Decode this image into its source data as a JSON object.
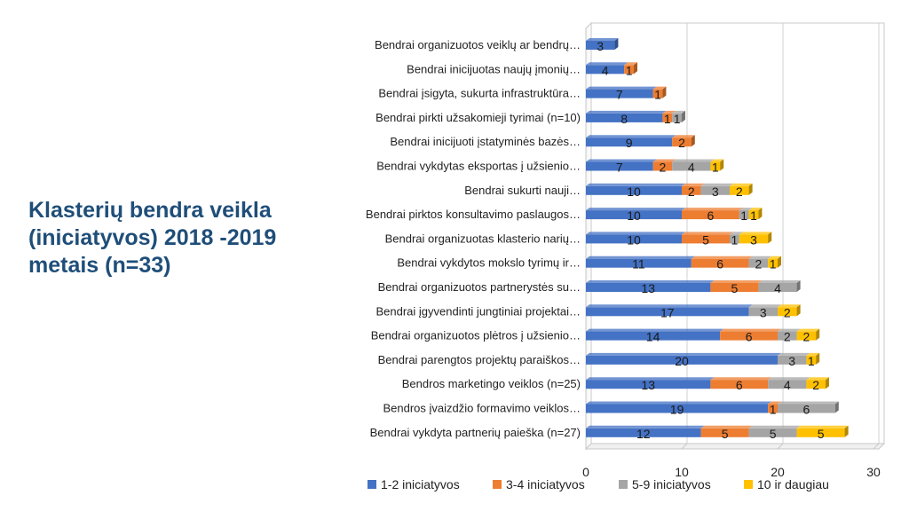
{
  "slide": {
    "title": "Klasterių bendra veikla (iniciatyvos) 2018 -2019 metais (n=33)"
  },
  "chart_data": {
    "type": "bar",
    "orientation": "horizontal",
    "stacked": true,
    "title": "",
    "xlabel": "",
    "ylabel": "",
    "xlim": [
      0,
      30
    ],
    "xticks": [
      0,
      10,
      20,
      30
    ],
    "grid": true,
    "legend_position": "bottom",
    "categories": [
      "Bendrai organizuotos veiklų ar bendrų…",
      "Bendrai inicijuotas naujų įmonių…",
      "Bendrai įsigyta, sukurta infrastruktūra…",
      "Bendrai pirkti užsakomieji tyrimai (n=10)",
      "Bendrai inicijuoti įstatyminės bazės…",
      "Bendrai vykdytas eksportas į užsienio…",
      "Bendrai sukurti nauji…",
      "Bendrai pirktos konsultavimo paslaugos…",
      "Bendrai organizuotas klasterio narių…",
      "Bendrai vykdytos mokslo tyrimų ir…",
      "Bendrai organizuotos partnerystės su…",
      "Bendrai įgyvendinti jungtiniai projektai…",
      "Bendrai organizuotos plėtros į užsienio…",
      "Bendrai parengtos projektų paraiškos…",
      "Bendros marketingo veiklos (n=25)",
      "Bendros įvaizdžio formavimo veiklos…",
      "Bendrai vykdyta partnerių paieška (n=27)"
    ],
    "series": [
      {
        "name": "1-2 iniciatyvos",
        "color": "#4472c4",
        "values": [
          3,
          4,
          7,
          8,
          9,
          7,
          10,
          10,
          10,
          11,
          13,
          17,
          14,
          20,
          13,
          19,
          12
        ]
      },
      {
        "name": "3-4 iniciatyvos",
        "color": "#ed7d31",
        "values": [
          null,
          1,
          1,
          1,
          2,
          2,
          2,
          6,
          5,
          6,
          5,
          null,
          6,
          null,
          6,
          1,
          5
        ]
      },
      {
        "name": "5-9 iniciatyvos",
        "color": "#a5a5a5",
        "values": [
          null,
          null,
          null,
          1,
          null,
          4,
          3,
          1,
          1,
          2,
          4,
          3,
          2,
          3,
          4,
          6,
          5
        ]
      },
      {
        "name": "10 ir daugiau",
        "color": "#ffc000",
        "values": [
          null,
          null,
          null,
          null,
          null,
          1,
          2,
          1,
          3,
          1,
          null,
          2,
          2,
          1,
          2,
          null,
          5
        ]
      }
    ]
  }
}
